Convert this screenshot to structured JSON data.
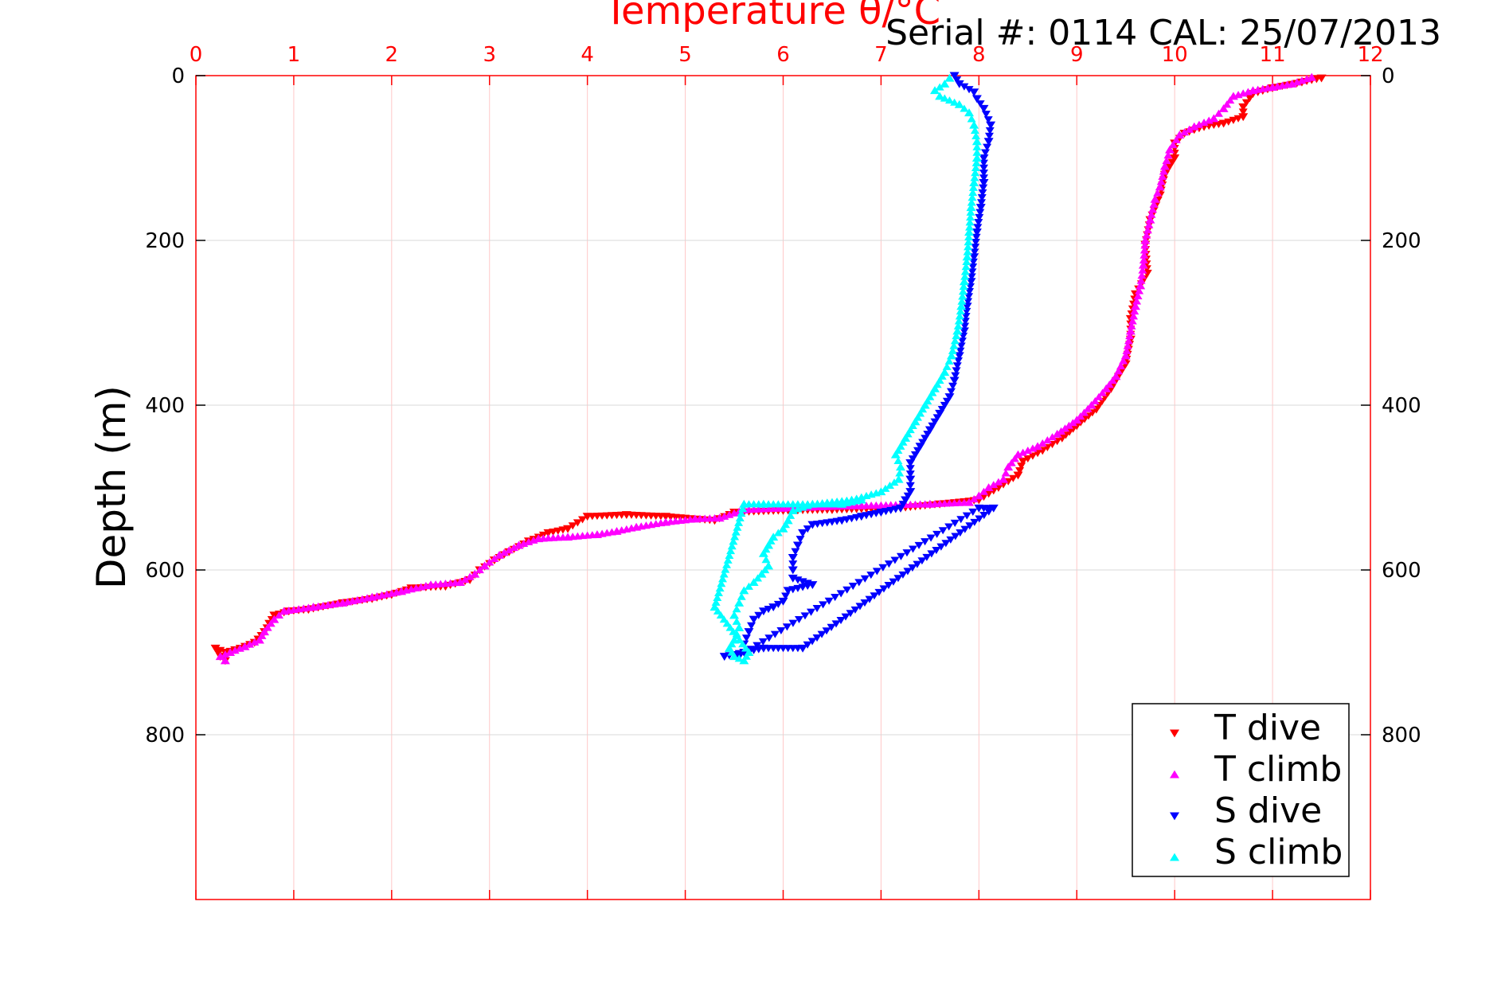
{
  "figure": {
    "serial_label": "Serial #: 0114  CAL: 25/07/2013"
  },
  "chart_data": {
    "type": "scatter",
    "title": "Temperature θ/°C",
    "xlabel": "Temperature θ/°C",
    "ylabel": "Depth (m)",
    "xlim": [
      0,
      12
    ],
    "ylim": [
      1000,
      0
    ],
    "y_reversed": true,
    "grid": true,
    "x_axis_position": "top",
    "x_ticks": [
      0,
      1,
      2,
      3,
      4,
      5,
      6,
      7,
      8,
      9,
      10,
      11,
      12
    ],
    "y_ticks": [
      0,
      200,
      400,
      600,
      800
    ],
    "legend_position": "bottom-right",
    "colors": {
      "axis": "#ff0000",
      "grid": "#ffc8c8",
      "ygrid": "#d8d8d8",
      "t_dive": "#ff0000",
      "t_climb": "#ff00ff",
      "s_dive": "#0000ff",
      "s_climb": "#00ffff"
    },
    "series": [
      {
        "name": "T dive",
        "marker": "triangle-down",
        "color": "#ff0000",
        "points": [
          [
            11.5,
            3
          ],
          [
            11.3,
            8
          ],
          [
            11.0,
            15
          ],
          [
            10.8,
            22
          ],
          [
            10.7,
            38
          ],
          [
            10.7,
            50
          ],
          [
            10.5,
            58
          ],
          [
            10.3,
            62
          ],
          [
            10.1,
            70
          ],
          [
            10.0,
            82
          ],
          [
            10.0,
            100
          ],
          [
            9.9,
            120
          ],
          [
            9.85,
            145
          ],
          [
            9.75,
            175
          ],
          [
            9.7,
            205
          ],
          [
            9.72,
            240
          ],
          [
            9.6,
            265
          ],
          [
            9.55,
            295
          ],
          [
            9.55,
            320
          ],
          [
            9.5,
            350
          ],
          [
            9.35,
            380
          ],
          [
            9.2,
            405
          ],
          [
            9.0,
            425
          ],
          [
            8.85,
            440
          ],
          [
            8.65,
            455
          ],
          [
            8.45,
            468
          ],
          [
            8.4,
            485
          ],
          [
            8.2,
            500
          ],
          [
            8.0,
            515
          ],
          [
            7.6,
            520
          ],
          [
            7.2,
            525
          ],
          [
            6.5,
            527
          ],
          [
            6.0,
            528
          ],
          [
            5.5,
            530
          ],
          [
            5.3,
            540
          ],
          [
            4.8,
            535
          ],
          [
            4.4,
            533
          ],
          [
            4.0,
            535
          ],
          [
            3.8,
            550
          ],
          [
            3.6,
            555
          ],
          [
            3.4,
            565
          ],
          [
            3.2,
            578
          ],
          [
            3.05,
            588
          ],
          [
            2.9,
            600
          ],
          [
            2.8,
            612
          ],
          [
            2.55,
            620
          ],
          [
            2.2,
            622
          ],
          [
            2.0,
            630
          ],
          [
            1.8,
            635
          ],
          [
            1.5,
            640
          ],
          [
            1.15,
            648
          ],
          [
            0.95,
            650
          ],
          [
            0.8,
            655
          ],
          [
            0.75,
            665
          ],
          [
            0.7,
            675
          ],
          [
            0.6,
            688
          ],
          [
            0.4,
            697
          ],
          [
            0.3,
            700
          ],
          [
            0.2,
            695
          ],
          [
            0.25,
            705
          ],
          [
            0.3,
            710
          ]
        ]
      },
      {
        "name": "T climb",
        "marker": "triangle-up",
        "color": "#ff00ff",
        "points": [
          [
            11.4,
            2
          ],
          [
            11.2,
            10
          ],
          [
            11.0,
            14
          ],
          [
            10.8,
            18
          ],
          [
            10.6,
            25
          ],
          [
            10.5,
            40
          ],
          [
            10.4,
            52
          ],
          [
            10.2,
            62
          ],
          [
            10.05,
            72
          ],
          [
            9.95,
            90
          ],
          [
            9.9,
            110
          ],
          [
            9.85,
            135
          ],
          [
            9.8,
            150
          ],
          [
            9.75,
            175
          ],
          [
            9.7,
            200
          ],
          [
            9.68,
            230
          ],
          [
            9.65,
            255
          ],
          [
            9.6,
            280
          ],
          [
            9.55,
            310
          ],
          [
            9.5,
            340
          ],
          [
            9.4,
            365
          ],
          [
            9.3,
            380
          ],
          [
            9.15,
            400
          ],
          [
            9.0,
            418
          ],
          [
            8.8,
            435
          ],
          [
            8.6,
            450
          ],
          [
            8.4,
            460
          ],
          [
            8.3,
            475
          ],
          [
            8.25,
            490
          ],
          [
            8.1,
            500
          ],
          [
            8.0,
            510
          ],
          [
            7.9,
            518
          ],
          [
            7.5,
            520
          ],
          [
            6.8,
            522
          ],
          [
            6.0,
            525
          ],
          [
            5.6,
            527
          ],
          [
            5.35,
            537
          ],
          [
            5.1,
            538
          ],
          [
            4.8,
            542
          ],
          [
            4.5,
            548
          ],
          [
            4.3,
            553
          ],
          [
            4.1,
            557
          ],
          [
            3.8,
            560
          ],
          [
            3.5,
            562
          ],
          [
            3.3,
            570
          ],
          [
            3.1,
            582
          ],
          [
            2.95,
            595
          ],
          [
            2.85,
            605
          ],
          [
            2.7,
            615
          ],
          [
            2.4,
            618
          ],
          [
            2.1,
            626
          ],
          [
            1.8,
            633
          ],
          [
            1.5,
            640
          ],
          [
            1.2,
            645
          ],
          [
            0.9,
            650
          ],
          [
            0.8,
            660
          ],
          [
            0.7,
            675
          ],
          [
            0.65,
            685
          ],
          [
            0.5,
            693
          ],
          [
            0.35,
            700
          ],
          [
            0.25,
            705
          ],
          [
            0.3,
            710
          ]
        ]
      },
      {
        "name": "S dive",
        "marker": "triangle-down",
        "color": "#0000ff",
        "points": [
          [
            7.75,
            0
          ],
          [
            7.8,
            10
          ],
          [
            7.95,
            20
          ],
          [
            7.98,
            28
          ],
          [
            8.05,
            40
          ],
          [
            8.12,
            60
          ],
          [
            8.1,
            80
          ],
          [
            8.05,
            100
          ],
          [
            8.05,
            130
          ],
          [
            8.02,
            160
          ],
          [
            7.98,
            190
          ],
          [
            7.95,
            220
          ],
          [
            7.92,
            250
          ],
          [
            7.88,
            280
          ],
          [
            7.85,
            310
          ],
          [
            7.8,
            340
          ],
          [
            7.75,
            370
          ],
          [
            7.7,
            390
          ],
          [
            7.6,
            410
          ],
          [
            7.5,
            430
          ],
          [
            7.4,
            450
          ],
          [
            7.3,
            470
          ],
          [
            7.3,
            490
          ],
          [
            7.3,
            505
          ],
          [
            7.25,
            515
          ],
          [
            7.2,
            525
          ],
          [
            7.0,
            530
          ],
          [
            6.8,
            535
          ],
          [
            6.6,
            540
          ],
          [
            6.3,
            545
          ],
          [
            6.2,
            555
          ],
          [
            6.15,
            570
          ],
          [
            6.1,
            585
          ],
          [
            6.1,
            600
          ],
          [
            6.1,
            610
          ],
          [
            6.3,
            618
          ],
          [
            6.05,
            625
          ],
          [
            6.0,
            638
          ],
          [
            5.9,
            645
          ],
          [
            5.8,
            650
          ],
          [
            5.7,
            660
          ],
          [
            5.65,
            675
          ],
          [
            5.6,
            690
          ],
          [
            5.6,
            700
          ],
          [
            5.55,
            705
          ],
          [
            8.0,
            525
          ],
          [
            8.15,
            525
          ],
          [
            6.2,
            695
          ],
          [
            5.8,
            695
          ],
          [
            5.4,
            705
          ]
        ]
      },
      {
        "name": "S climb",
        "marker": "triangle-up",
        "color": "#00ffff",
        "points": [
          [
            7.7,
            3
          ],
          [
            7.65,
            10
          ],
          [
            7.55,
            18
          ],
          [
            7.6,
            25
          ],
          [
            7.8,
            35
          ],
          [
            7.9,
            45
          ],
          [
            7.95,
            60
          ],
          [
            7.98,
            80
          ],
          [
            7.98,
            100
          ],
          [
            7.95,
            130
          ],
          [
            7.92,
            160
          ],
          [
            7.9,
            190
          ],
          [
            7.88,
            220
          ],
          [
            7.85,
            250
          ],
          [
            7.82,
            280
          ],
          [
            7.78,
            310
          ],
          [
            7.72,
            340
          ],
          [
            7.65,
            360
          ],
          [
            7.55,
            380
          ],
          [
            7.45,
            400
          ],
          [
            7.35,
            420
          ],
          [
            7.25,
            440
          ],
          [
            7.15,
            460
          ],
          [
            7.2,
            475
          ],
          [
            7.18,
            490
          ],
          [
            7.0,
            505
          ],
          [
            6.7,
            515
          ],
          [
            6.3,
            520
          ],
          [
            6.1,
            528
          ],
          [
            6.05,
            540
          ],
          [
            6.0,
            550
          ],
          [
            5.9,
            560
          ],
          [
            5.85,
            570
          ],
          [
            5.8,
            580
          ],
          [
            5.85,
            595
          ],
          [
            5.78,
            605
          ],
          [
            5.7,
            615
          ],
          [
            5.6,
            625
          ],
          [
            5.55,
            640
          ],
          [
            5.5,
            655
          ],
          [
            5.55,
            670
          ],
          [
            5.5,
            685
          ],
          [
            5.45,
            695
          ],
          [
            5.5,
            705
          ],
          [
            5.6,
            710
          ],
          [
            5.65,
            700
          ],
          [
            5.3,
            645
          ],
          [
            5.6,
            520
          ],
          [
            5.8,
            520
          ],
          [
            6.6,
            520
          ],
          [
            6.8,
            515
          ]
        ]
      }
    ]
  }
}
